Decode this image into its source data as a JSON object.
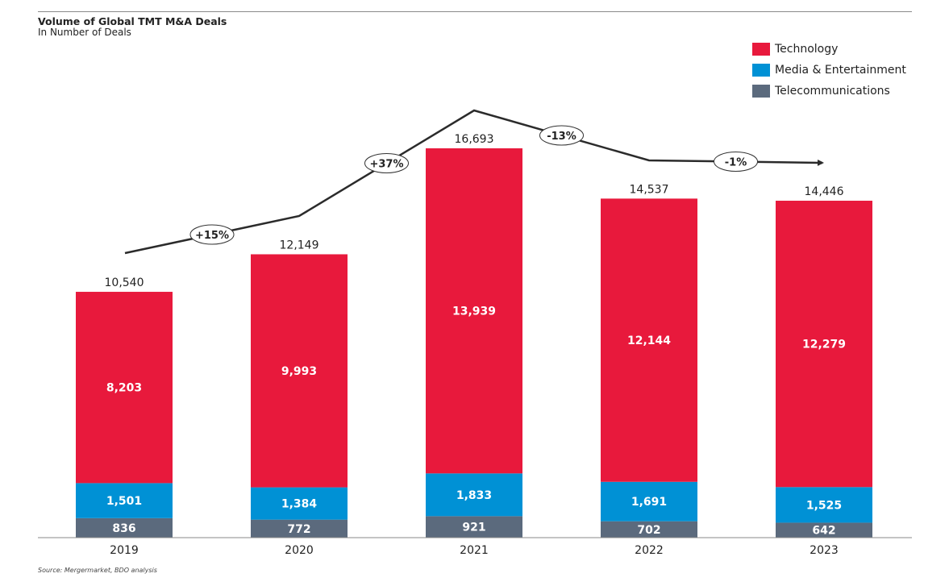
{
  "title": "Volume of Global TMT M&A Deals",
  "subtitle": "In Number of Deals",
  "source": "Source: Mergermarket, BDO analysis",
  "colors": {
    "technology": "#e8193c",
    "media": "#0091d5",
    "telecom": "#5b6a7d",
    "trend": "#2b2b2b"
  },
  "chart_data": {
    "type": "bar",
    "stacked": true,
    "categories": [
      "2019",
      "2020",
      "2021",
      "2022",
      "2023"
    ],
    "series": [
      {
        "name": "Telecommunications",
        "values": [
          836,
          772,
          921,
          702,
          642
        ],
        "labels": [
          "836",
          "772",
          "921",
          "702",
          "642"
        ]
      },
      {
        "name": "Media & Entertainment",
        "values": [
          1501,
          1384,
          1833,
          1691,
          1525
        ],
        "labels": [
          "1,501",
          "1,384",
          "1,833",
          "1,691",
          "1,525"
        ]
      },
      {
        "name": "Technology",
        "values": [
          8203,
          9993,
          13939,
          12144,
          12279
        ],
        "labels": [
          "8,203",
          "9,993",
          "13,939",
          "12,144",
          "12,279"
        ]
      }
    ],
    "totals": [
      10540,
      12149,
      16693,
      14537,
      14446
    ],
    "total_labels": [
      "10,540",
      "12,149",
      "16,693",
      "14,537",
      "14,446"
    ],
    "growth_labels": [
      "+15%",
      "+37%",
      "-13%",
      "-1%"
    ],
    "legend": [
      "Technology",
      "Media & Entertainment",
      "Telecommunications"
    ],
    "legend_position": "top-right",
    "ylim": [
      0,
      17000
    ],
    "grid": false
  }
}
